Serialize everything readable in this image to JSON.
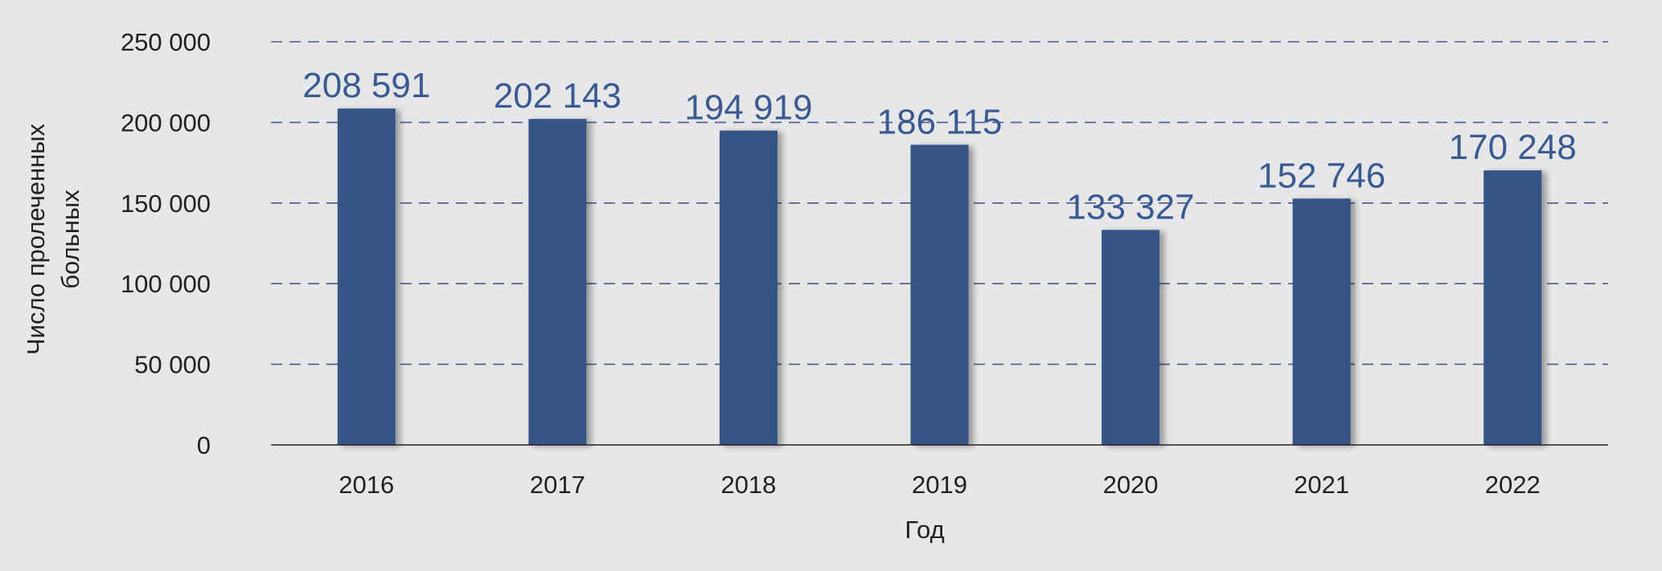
{
  "chart_data": {
    "type": "bar",
    "categories": [
      "2016",
      "2017",
      "2018",
      "2019",
      "2020",
      "2021",
      "2022"
    ],
    "values": [
      208591,
      202143,
      194919,
      186115,
      133327,
      152746,
      170248
    ],
    "data_labels": [
      "208 591",
      "202 143",
      "194 919",
      "186 115",
      "133 327",
      "152 746",
      "170 248"
    ],
    "title": "",
    "xlabel": "Год",
    "ylabel": [
      "Число пролеченных",
      "больных"
    ],
    "ylim": [
      0,
      250000
    ],
    "yticks": [
      0,
      50000,
      100000,
      150000,
      200000,
      250000
    ],
    "ytick_labels": [
      "0",
      "50 000",
      "100 000",
      "150 000",
      "200 000",
      "250 000"
    ],
    "grid": "horizontal dashed",
    "legend": "none"
  },
  "colors": {
    "background": "#e6e7e8",
    "bar": "#355383",
    "bar_shadow": "#b8b9bb",
    "data_label": "#3c5a92",
    "grid": "#4a5c86",
    "axis": "#231f20",
    "text": "#231f20"
  }
}
